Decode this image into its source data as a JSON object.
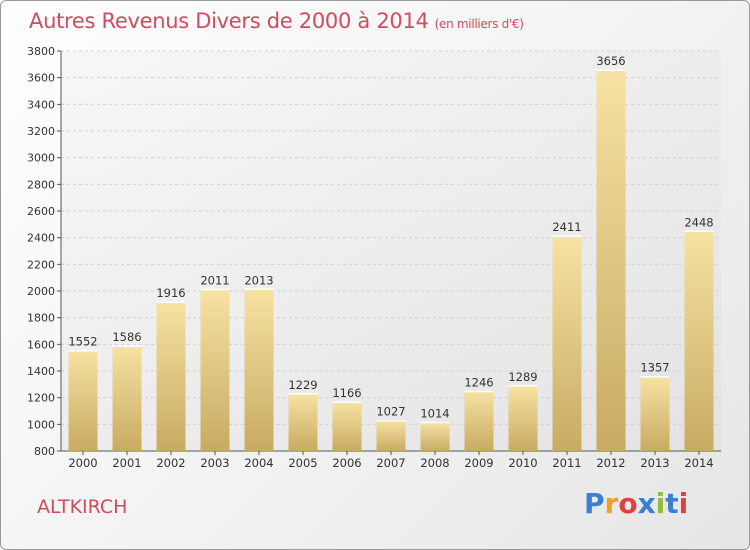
{
  "title": "Autres Revenus Divers de 2000 à 2014",
  "subtitle": "(en milliers d'€)",
  "city": "ALTKIRCH",
  "logo": {
    "letters": [
      "P",
      "r",
      "o",
      "x",
      "i",
      "t",
      "i"
    ],
    "colors": [
      "#3b7fd0",
      "#f0a020",
      "#e24040",
      "#3b7fd0",
      "#90c030",
      "#3b7fd0",
      "#e24040"
    ]
  },
  "colors": {
    "title": "#d24b5c",
    "bar_top": "#f5df9c",
    "bar_bottom": "#c9ad66"
  },
  "chart_data": {
    "type": "bar",
    "categories": [
      "2000",
      "2001",
      "2002",
      "2003",
      "2004",
      "2005",
      "2006",
      "2007",
      "2008",
      "2009",
      "2010",
      "2011",
      "2012",
      "2013",
      "2014"
    ],
    "values": [
      1552,
      1586,
      1916,
      2011,
      2013,
      1229,
      1166,
      1027,
      1014,
      1246,
      1289,
      2411,
      3656,
      1357,
      2448
    ],
    "title": "Autres Revenus Divers de 2000 à 2014",
    "subtitle": "(en milliers d'€)",
    "ylim": [
      800,
      3800
    ],
    "yticks": [
      800,
      1000,
      1200,
      1400,
      1600,
      1800,
      2000,
      2200,
      2400,
      2600,
      2800,
      3000,
      3200,
      3400,
      3600,
      3800
    ],
    "grid": true,
    "xlabel": "",
    "ylabel": ""
  }
}
